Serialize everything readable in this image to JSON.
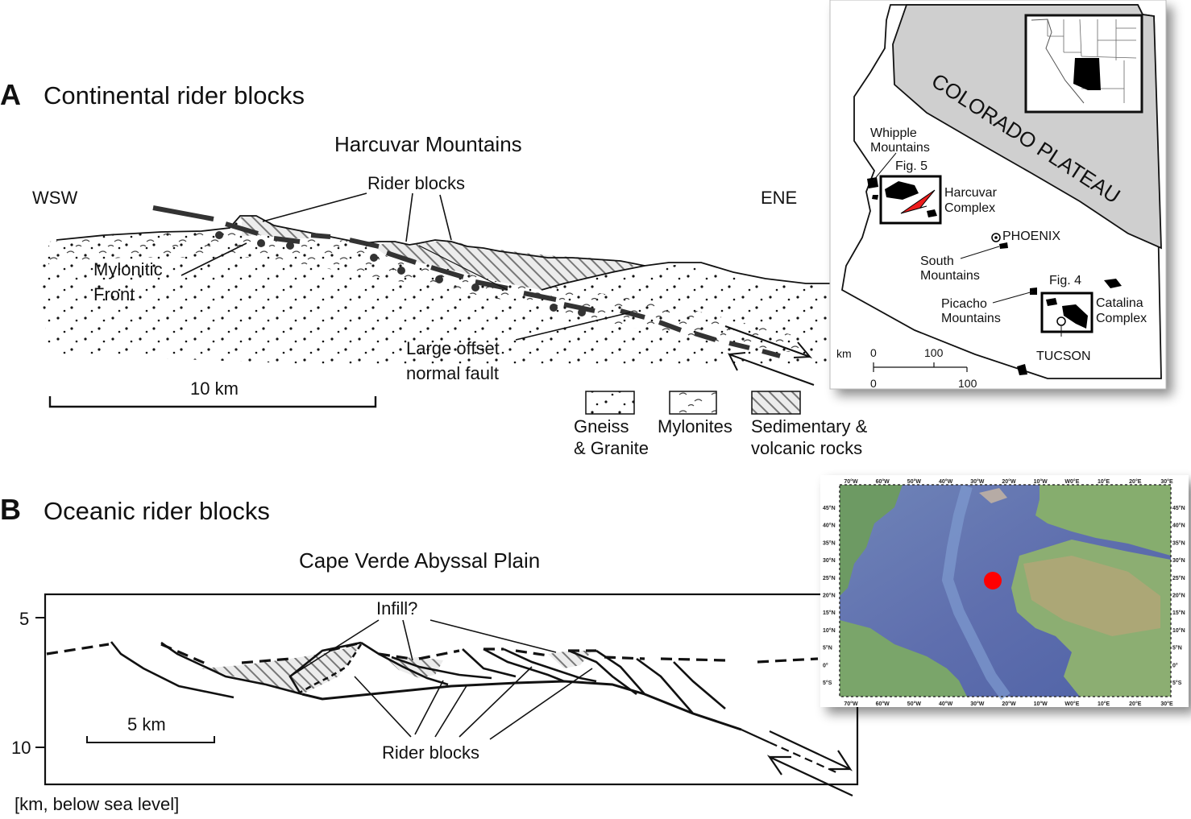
{
  "panel_a": {
    "letter": "A",
    "title": "Continental rider blocks",
    "subtitle": "Harcuvar Mountains",
    "left_direction": "WSW",
    "right_direction": "ENE",
    "label_rider_blocks": "Rider blocks",
    "label_mylonitic_line1": "Mylonitic",
    "label_mylonitic_line2": "Front",
    "label_fault_line1": "Large offset",
    "label_fault_line2": "normal fault",
    "scale_label": "10 km",
    "legend": [
      {
        "line1": "Gneiss",
        "line2": "& Granite"
      },
      {
        "line1": "Mylonites",
        "line2": ""
      },
      {
        "line1": "Sedimentary &",
        "line2": "volcanic rocks"
      }
    ]
  },
  "map_arizona": {
    "plateau_label": "COLORADO PLATEAU",
    "whipple_line1": "Whipple",
    "whipple_line2": "Mountains",
    "fig5": "Fig. 5",
    "harcuvar_line1": "Harcuvar",
    "harcuvar_line2": "Complex",
    "phoenix": "PHOENIX",
    "south_line1": "South",
    "south_line2": "Mountains",
    "fig4": "Fig. 4",
    "picacho_line1": "Picacho",
    "picacho_line2": "Mountains",
    "catalina_line1": "Catalina",
    "catalina_line2": "Complex",
    "tucson": "TUCSON",
    "scale_unit": "km",
    "scale_top_0": "0",
    "scale_top_100": "100",
    "scale_bottom_0": "0",
    "scale_bottom_100": "100"
  },
  "panel_b": {
    "letter": "B",
    "title": "Oceanic rider blocks",
    "subtitle": "Cape Verde Abyssal Plain",
    "label_infill": "Infill?",
    "label_rider_blocks": "Rider blocks",
    "scale_label": "5 km",
    "depth_5": "5",
    "depth_10": "10",
    "depth_unit": "[km, below sea level]"
  },
  "map_atlantic": {
    "lon_ticks": [
      "70°W",
      "60°W",
      "50°W",
      "40°W",
      "30°W",
      "20°W",
      "10°W",
      "W0°E",
      "10°E",
      "20°E",
      "30°E"
    ],
    "lat_ticks": [
      "45°N",
      "40°N",
      "35°N",
      "30°N",
      "25°N",
      "20°N",
      "15°N",
      "10°N",
      "5°N",
      "0°",
      "5°S"
    ],
    "marker_color": "#ff0000"
  }
}
